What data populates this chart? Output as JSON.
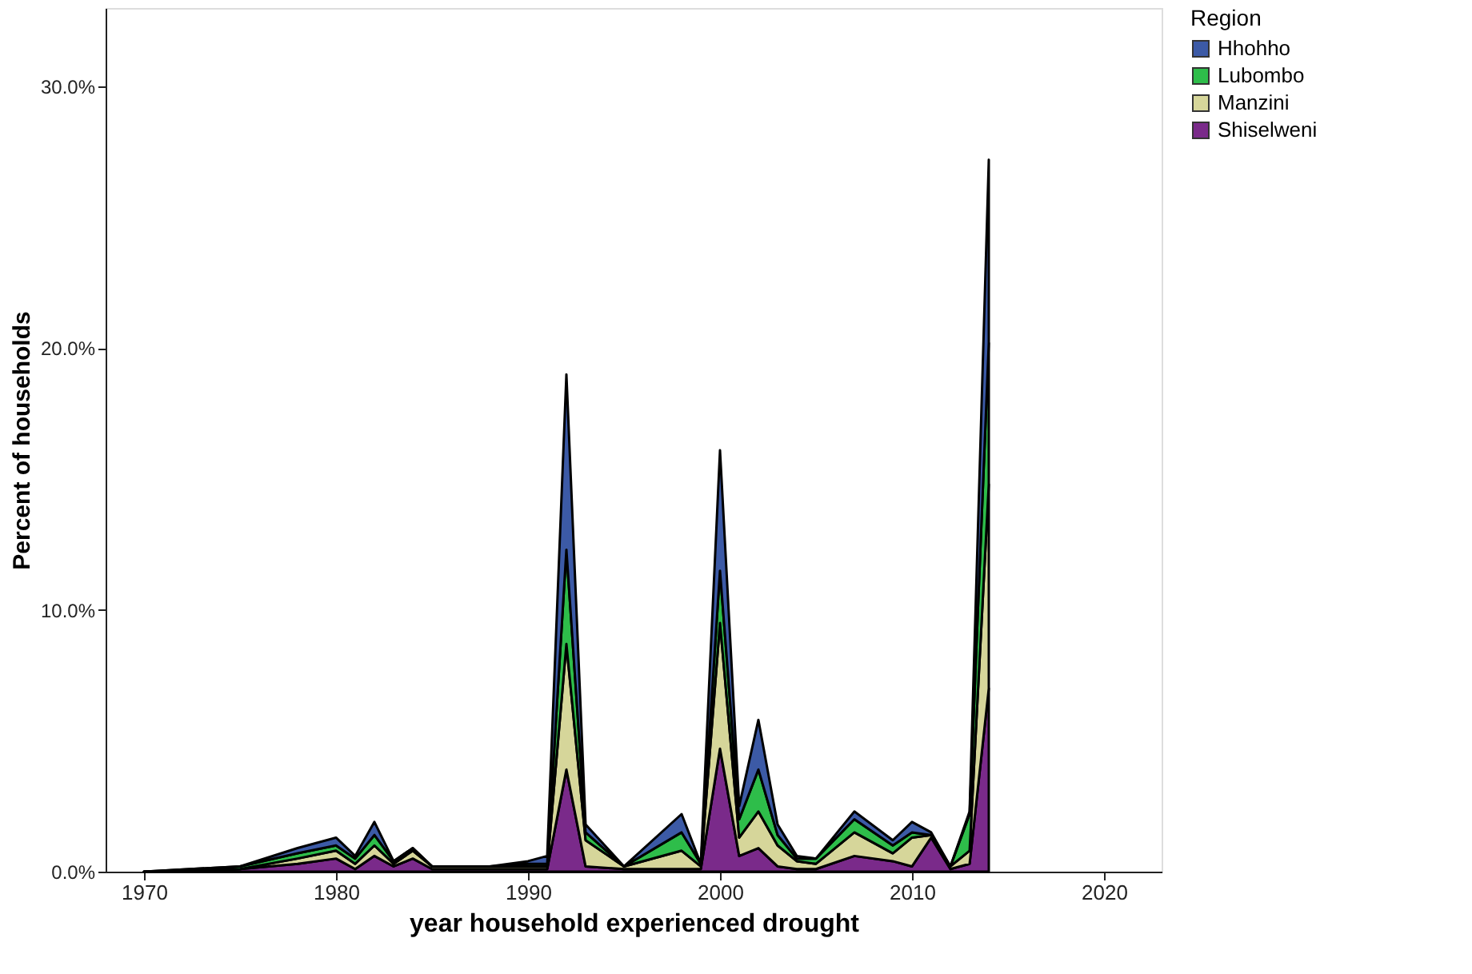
{
  "chart_data": {
    "type": "area",
    "stacked": true,
    "xlabel": "year household experienced drought",
    "ylabel": "Percent of households",
    "legend_title": "Region",
    "legend": "top right",
    "grid": false,
    "x": [
      1970,
      1975,
      1978,
      1980,
      1981,
      1982,
      1983,
      1984,
      1985,
      1988,
      1990,
      1991,
      1992,
      1993,
      1995,
      1998,
      1999,
      2000,
      2001,
      2002,
      2003,
      2004,
      2005,
      2007,
      2009,
      2010,
      2011,
      2012,
      2013,
      2014
    ],
    "xlim": [
      1968,
      2023
    ],
    "xticks": [
      1970,
      1980,
      1990,
      2000,
      2010,
      2020
    ],
    "ylim": [
      0,
      33
    ],
    "yticks": [
      {
        "value": 0,
        "label": "0.0%"
      },
      {
        "value": 10,
        "label": "10.0%"
      },
      {
        "value": 20,
        "label": "20.0%"
      },
      {
        "value": 30,
        "label": "30.0%"
      }
    ],
    "series": [
      {
        "name": "Shiselweni",
        "color": "#7a2a8a",
        "values": [
          0,
          0.1,
          0.3,
          0.5,
          0.1,
          0.6,
          0.2,
          0.5,
          0.1,
          0.1,
          0.1,
          0.1,
          3.9,
          0.2,
          0.1,
          0.1,
          0.1,
          4.7,
          0.6,
          0.9,
          0.2,
          0.1,
          0.1,
          0.6,
          0.4,
          0.2,
          1.3,
          0.1,
          0.3,
          7.0
        ]
      },
      {
        "name": "Manzini",
        "color": "#d6d69a",
        "values": [
          0,
          0,
          0.2,
          0.3,
          0.2,
          0.4,
          0.1,
          0.3,
          0.1,
          0.1,
          0.1,
          0.1,
          4.8,
          1.0,
          0.1,
          0.7,
          0.1,
          4.8,
          0.7,
          1.4,
          0.8,
          0.3,
          0.2,
          0.9,
          0.3,
          1.1,
          0.1,
          0.1,
          0.5,
          7.8
        ]
      },
      {
        "name": "Lubombo",
        "color": "#2ebd4a",
        "values": [
          0,
          0.1,
          0.2,
          0.2,
          0.2,
          0.4,
          0.1,
          0.1,
          0,
          0,
          0.1,
          0.1,
          3.6,
          0.3,
          0,
          0.7,
          0.1,
          2.0,
          0.7,
          1.6,
          0.4,
          0.1,
          0.2,
          0.5,
          0.3,
          0.2,
          0,
          0,
          1.4,
          5.4
        ]
      },
      {
        "name": "Hhohho",
        "color": "#3c5aa6",
        "values": [
          0,
          0,
          0.2,
          0.3,
          0.1,
          0.5,
          0,
          0,
          0,
          0,
          0.1,
          0.3,
          6.7,
          0.3,
          0,
          0.7,
          0,
          4.6,
          0.5,
          1.9,
          0.4,
          0.1,
          0,
          0.3,
          0.2,
          0.4,
          0.1,
          0,
          0.1,
          7.0
        ]
      }
    ]
  }
}
